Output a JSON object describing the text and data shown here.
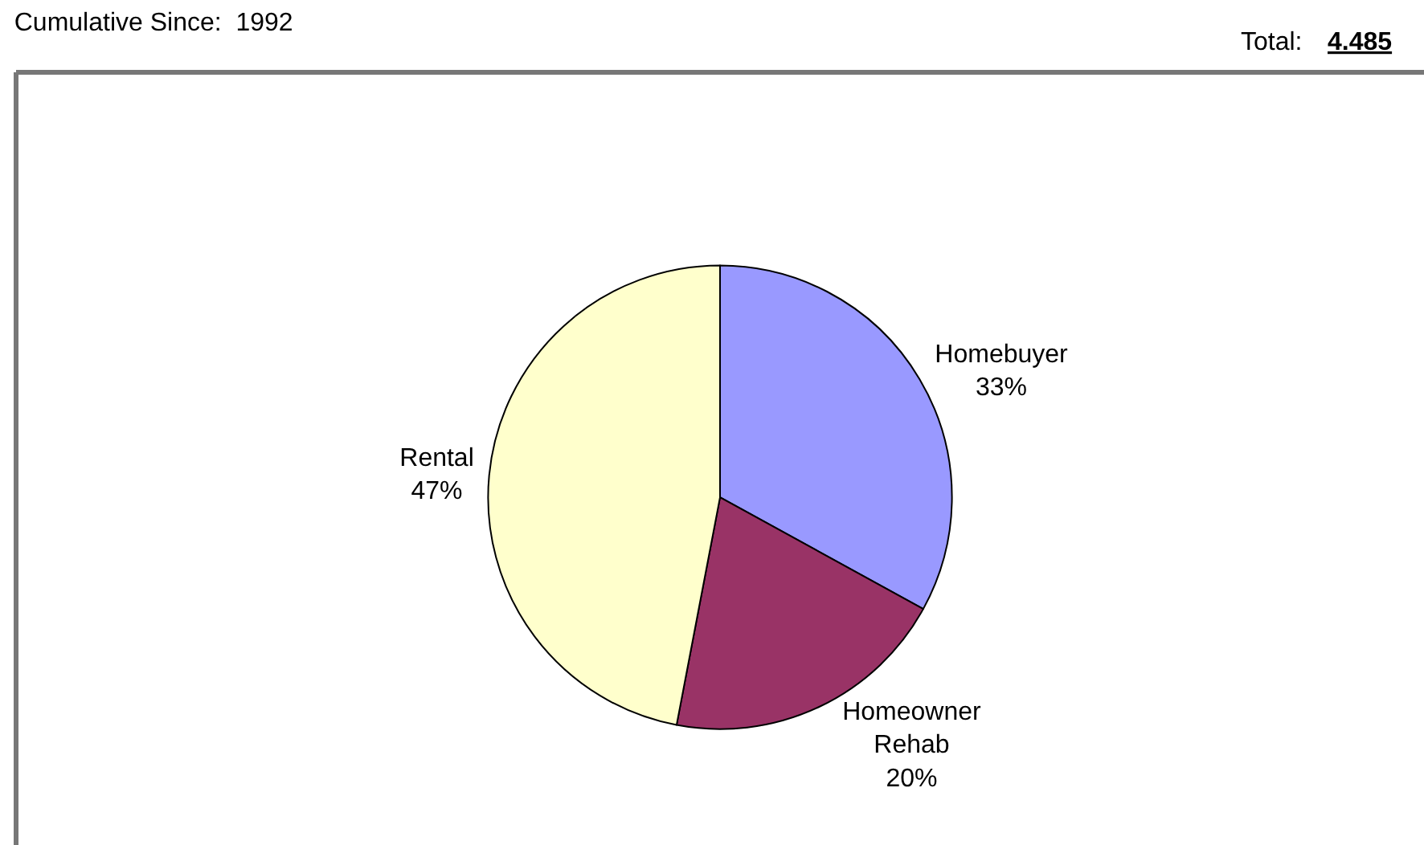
{
  "chart_data": {
    "type": "pie",
    "title": "Cumulative Since:  1992",
    "annotations": [
      "Total:",
      "4.485"
    ],
    "categories": [
      "Homebuyer",
      "Homeowner Rehab",
      "Rental"
    ],
    "values": [
      33,
      20,
      47
    ],
    "value_labels": [
      "33%",
      "20%",
      "47%"
    ],
    "colors": [
      "#9999ff",
      "#993366",
      "#ffffcc"
    ]
  }
}
